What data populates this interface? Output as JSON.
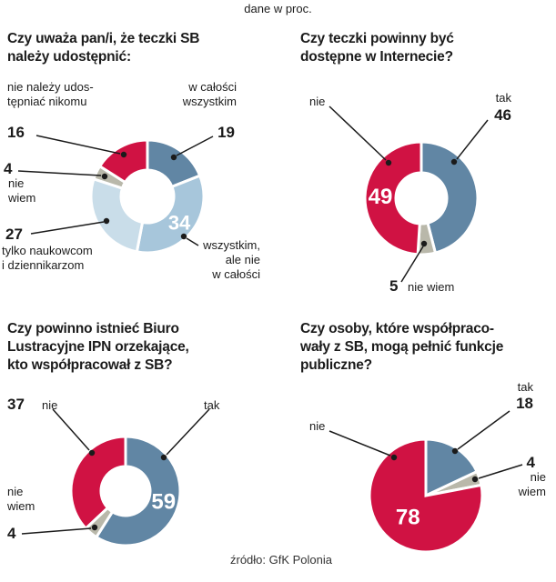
{
  "subtitle": "dane w proc.",
  "source": "źródło: GfK Polonia",
  "colors": {
    "red": "#d01243",
    "blue": "#6186a4",
    "lightblue": "#a7c6db",
    "paleblue": "#c9dde9",
    "gray": "#b9b8aa",
    "ink": "#1b1b1b"
  },
  "chart_data": [
    {
      "type": "donut",
      "title": "Czy uważa pan/i, że teczki SB należy udostępnić:",
      "title_lines": [
        "Czy uważa pan/i, że teczki SB",
        "należy udostępnić:"
      ],
      "start": "top",
      "direction": "clockwise",
      "slices": [
        {
          "label": "w całości wszystkim",
          "label_lines": [
            "w całości",
            "wszystkim"
          ],
          "value": 19,
          "color": "blue",
          "value_inside": false
        },
        {
          "label": "wszystkim, ale nie w całości",
          "label_lines": [
            "wszystkim,",
            "ale nie",
            "w całości"
          ],
          "value": 34,
          "color": "lightblue",
          "value_inside": true
        },
        {
          "label": "tylko naukowcom i dziennikarzom",
          "label_lines": [
            "tylko naukowcom",
            "i dziennikarzom"
          ],
          "value": 27,
          "color": "paleblue",
          "value_inside": false
        },
        {
          "label": "nie wiem",
          "label_lines": [
            "nie",
            "wiem"
          ],
          "value": 4,
          "color": "gray",
          "value_inside": false
        },
        {
          "label": "nie należy udostępniać nikomu",
          "label_lines": [
            "nie należy udos-",
            "tępniać nikomu"
          ],
          "value": 16,
          "color": "red",
          "value_inside": false
        }
      ]
    },
    {
      "type": "donut",
      "title": "Czy teczki powinny być dostępne w Internecie?",
      "title_lines": [
        "Czy teczki powinny być",
        "dostępne w Internecie?"
      ],
      "start": "top",
      "direction": "clockwise",
      "slices": [
        {
          "label": "tak",
          "value": 46,
          "color": "blue",
          "value_inside": false
        },
        {
          "label": "nie wiem",
          "value": 5,
          "color": "gray",
          "value_inside": false
        },
        {
          "label": "nie",
          "value": 49,
          "color": "red",
          "value_inside": true
        }
      ]
    },
    {
      "type": "donut",
      "title": "Czy powinno istnieć Biuro Lustracyjne IPN orzekające, kto współpracował z SB?",
      "title_lines": [
        "Czy powinno istnieć Biuro",
        "Lustracyjne IPN orzekające,",
        "kto współpracował z SB?"
      ],
      "start": "top",
      "direction": "clockwise",
      "slices": [
        {
          "label": "tak",
          "value": 59,
          "color": "blue",
          "value_inside": true
        },
        {
          "label": "nie wiem",
          "label_lines": [
            "nie",
            "wiem"
          ],
          "value": 4,
          "color": "gray",
          "value_inside": false
        },
        {
          "label": "nie",
          "value": 37,
          "color": "red",
          "value_inside": false
        }
      ]
    },
    {
      "type": "pie",
      "title": "Czy osoby, które współpracowały z SB, mogą pełnić funkcje publiczne?",
      "title_lines": [
        "Czy osoby, które współpraco-",
        "wały z SB, mogą pełnić funkcje",
        "publiczne?"
      ],
      "start": "top",
      "direction": "clockwise",
      "slices": [
        {
          "label": "tak",
          "value": 18,
          "color": "blue",
          "value_inside": false
        },
        {
          "label": "nie wiem",
          "label_lines": [
            "nie",
            "wiem"
          ],
          "value": 4,
          "color": "gray",
          "value_inside": false
        },
        {
          "label": "nie",
          "value": 78,
          "color": "red",
          "value_inside": true
        }
      ]
    }
  ]
}
